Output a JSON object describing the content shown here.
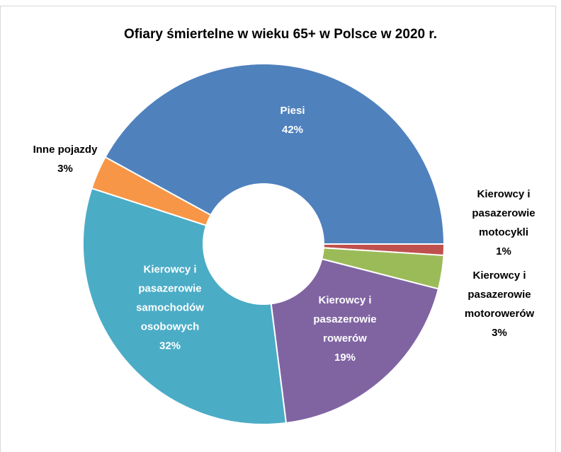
{
  "chart_data": {
    "type": "doughnut",
    "title": "Ofiary śmiertelne w wieku 65+ w Polsce w 2020 r.",
    "categories": [
      "Piesi",
      "Kierowcy i pasazerowie motocykli",
      "Kierowcy i pasazerowie motorowerów",
      "Kierowcy i pasazerowie rowerów",
      "Kierowcy i pasazerowie samochodów osobowych",
      "Inne pojazdy"
    ],
    "values": [
      42,
      1,
      3,
      19,
      32,
      3
    ],
    "value_labels": [
      "42%",
      "1%",
      "3%",
      "19%",
      "32%",
      "3%"
    ],
    "colors": [
      "#4f81bd",
      "#c0504d",
      "#9bbb59",
      "#8064a2",
      "#4bacc6",
      "#f79646"
    ]
  }
}
